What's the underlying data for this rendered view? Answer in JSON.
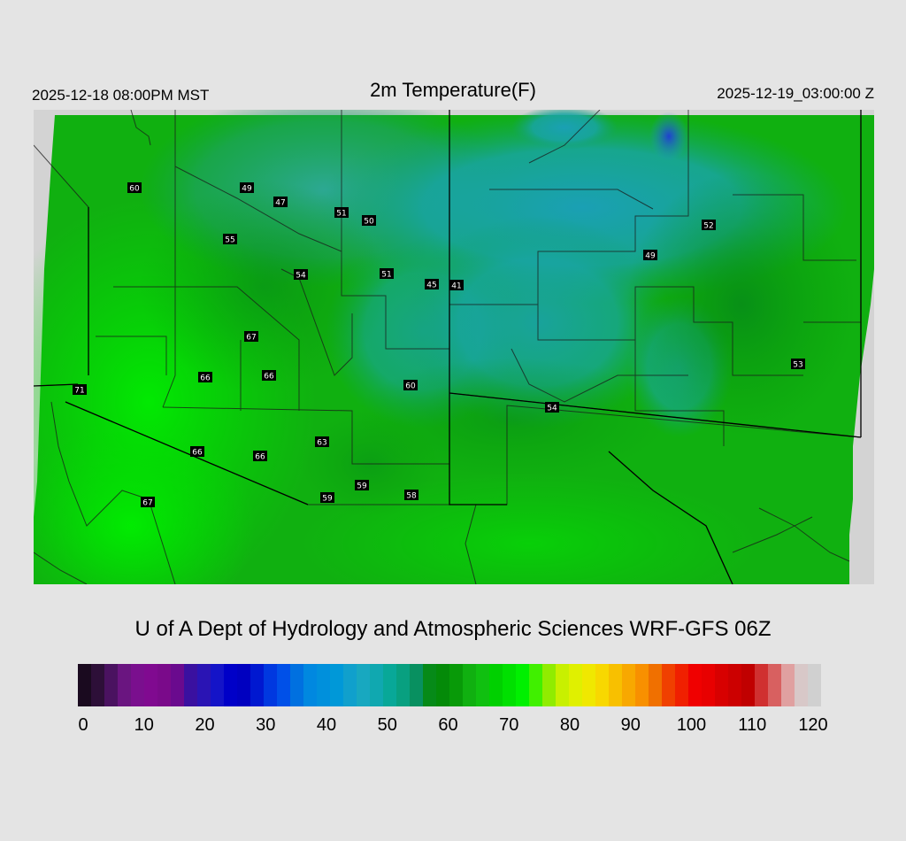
{
  "header": {
    "title": "2m Temperature(F)",
    "local_time": "2025-12-18 08:00PM MST",
    "valid_time": "2025-12-19_03:00:00 Z"
  },
  "credit": "U of A Dept of Hydrology and Atmospheric Sciences WRF-GFS 06Z",
  "colorbar": {
    "ticks": [
      "0",
      "10",
      "20",
      "30",
      "40",
      "50",
      "60",
      "70",
      "80",
      "90",
      "100",
      "110",
      "120"
    ],
    "range_min": 0,
    "range_max": 120,
    "colors": [
      "#1a0a1f",
      "#2d0f38",
      "#4a1260",
      "#6a1580",
      "#7a0f8e",
      "#800a90",
      "#7a0a8a",
      "#6a0a8e",
      "#3a10a0",
      "#2a14b4",
      "#1414c8",
      "#0000c8",
      "#0000c0",
      "#0018d0",
      "#0038e0",
      "#0050e8",
      "#0070e0",
      "#0088e0",
      "#0090dc",
      "#0098d8",
      "#10a0cc",
      "#18a8c0",
      "#10a8b0",
      "#08a898",
      "#08a080",
      "#089060",
      "#068a18",
      "#048a08",
      "#089a08",
      "#10b010",
      "#10c010",
      "#00d000",
      "#00e000",
      "#00f000",
      "#40f000",
      "#90ec00",
      "#c8f000",
      "#e0f000",
      "#f0e800",
      "#f8d800",
      "#f8c000",
      "#f8a800",
      "#f89000",
      "#f07000",
      "#f04000",
      "#f02000",
      "#f00000",
      "#e80000",
      "#d80000",
      "#cc0000",
      "#c00000",
      "#d03030",
      "#d86060",
      "#e0a0a0",
      "#d8c8c8",
      "#d0d0d0"
    ]
  },
  "stations": [
    {
      "value": "60"
    },
    {
      "value": "49"
    },
    {
      "value": "47"
    },
    {
      "value": "51"
    },
    {
      "value": "50"
    },
    {
      "value": "55"
    },
    {
      "value": "54"
    },
    {
      "value": "51"
    },
    {
      "value": "45"
    },
    {
      "value": "41"
    },
    {
      "value": "52"
    },
    {
      "value": "49"
    },
    {
      "value": "67"
    },
    {
      "value": "66"
    },
    {
      "value": "66"
    },
    {
      "value": "60"
    },
    {
      "value": "71"
    },
    {
      "value": "53"
    },
    {
      "value": "54"
    },
    {
      "value": "63"
    },
    {
      "value": "66"
    },
    {
      "value": "66"
    },
    {
      "value": "59"
    },
    {
      "value": "59"
    },
    {
      "value": "58"
    },
    {
      "value": "67"
    }
  ]
}
